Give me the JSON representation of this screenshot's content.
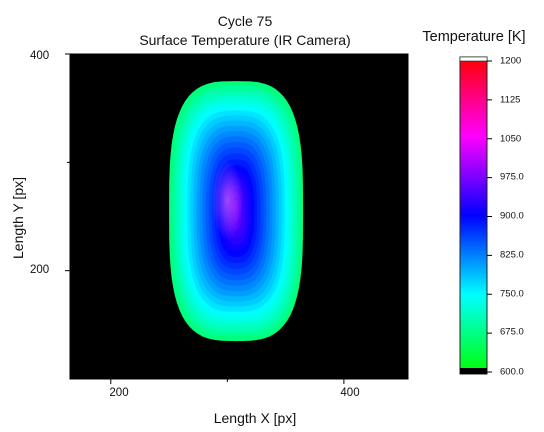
{
  "chart_data": {
    "type": "heatmap",
    "title": "Cycle 75",
    "subtitle": "Surface Temperature (IR Camera)",
    "xlabel": "Length X [px]",
    "ylabel": "Length Y [px]",
    "xlim": [
      165,
      455
    ],
    "ylim": [
      100,
      400
    ],
    "xticks": [
      "200",
      "400"
    ],
    "yticks": [
      "400",
      "200"
    ],
    "background_color": "#000000",
    "colorbar": {
      "title": "Temperature [K]",
      "min": 600,
      "max": 1200,
      "ticks": [
        "1200",
        "1125",
        "1050",
        "975.0",
        "900.0",
        "825.0",
        "750.0",
        "675.0",
        "600.0"
      ],
      "colors": [
        "#00ff00",
        "#00ffff",
        "#0000ff",
        "#ff00ff",
        "#ff0000"
      ]
    },
    "hot_region": {
      "x_range": [
        250,
        365
      ],
      "y_range": [
        135,
        375
      ],
      "edge_temperature": 672,
      "peak_temperature": 960,
      "peak_location": [
        300,
        265
      ]
    }
  }
}
